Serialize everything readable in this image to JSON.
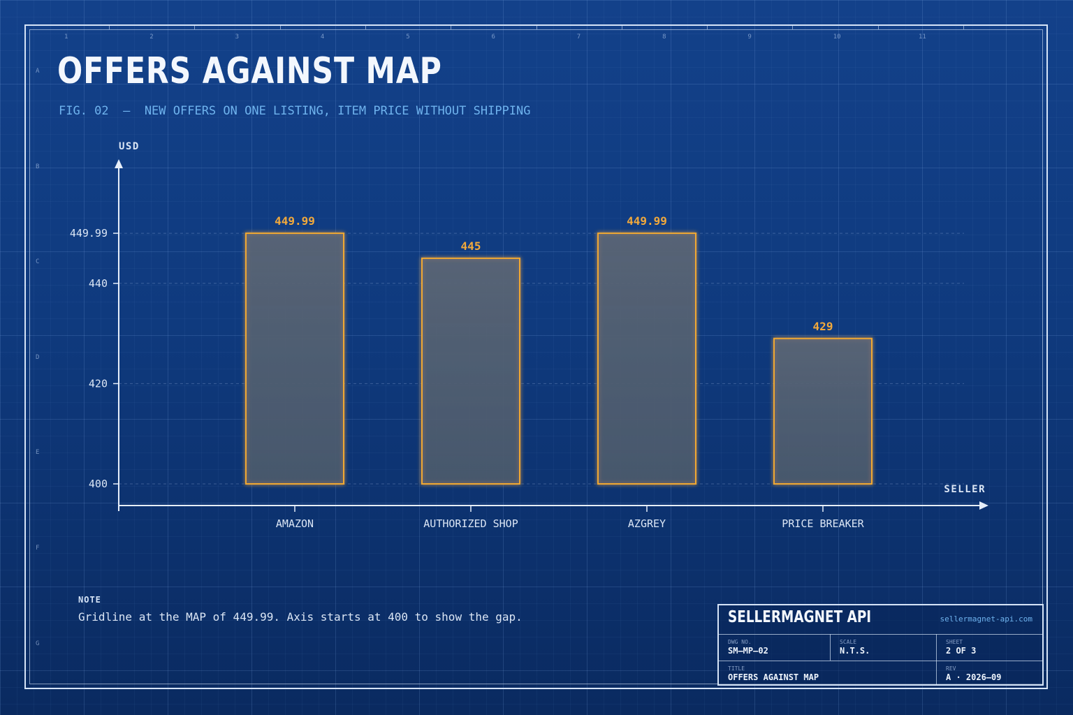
{
  "header": {
    "title": "OFFERS AGAINST MAP",
    "subtitle": "FIG. 02  —  NEW OFFERS ON ONE LISTING, ITEM PRICE WITHOUT SHIPPING"
  },
  "rulers": {
    "columns": [
      "1",
      "2",
      "3",
      "4",
      "5",
      "6",
      "7",
      "8",
      "9",
      "10",
      "11"
    ],
    "rows": [
      "A",
      "B",
      "C",
      "D",
      "E",
      "F",
      "G"
    ]
  },
  "chart_data": {
    "type": "bar",
    "ylabel": "USD",
    "xlabel": "SELLER",
    "categories": [
      "AMAZON",
      "AUTHORIZED SHOP",
      "AZGREY",
      "PRICE BREAKER"
    ],
    "values": [
      449.99,
      445,
      449.99,
      429
    ],
    "value_labels": [
      "449.99",
      "445",
      "449.99",
      "429"
    ],
    "yticks": [
      400,
      420,
      440,
      449.99
    ],
    "ytick_labels": [
      "400",
      "420",
      "440",
      "449.99"
    ],
    "ylim": [
      400,
      455
    ],
    "reference_line": 449.99,
    "grid": true,
    "colors": {
      "bar_stroke": "#f0a830",
      "bar_fill": "#4a5a6e",
      "value_label": "#f2a93b",
      "axis": "#e6eefa"
    }
  },
  "note": {
    "label": "NOTE",
    "text": "Gridline at the MAP of 449.99. Axis starts at 400 to show the gap."
  },
  "title_block": {
    "brand": "SELLERMAGNET API",
    "url": "sellermagnet-api.com",
    "dwg_no_label": "DWG NO.",
    "dwg_no": "SM–MP–02",
    "scale_label": "SCALE",
    "scale": "N.T.S.",
    "sheet_label": "SHEET",
    "sheet": "2 OF 3",
    "title_label": "TITLE",
    "title": "OFFERS AGAINST MAP",
    "rev_label": "REV",
    "rev": "A · 2026–09"
  }
}
